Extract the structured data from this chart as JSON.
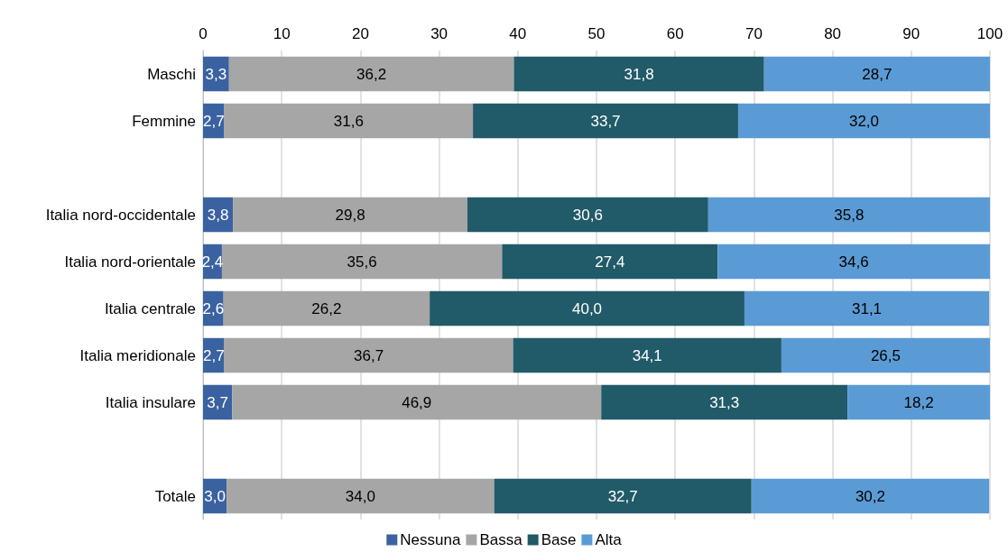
{
  "chart_data": {
    "type": "bar",
    "orientation": "horizontal",
    "stacked": true,
    "categories": [
      "Maschi",
      "Femmine",
      null,
      "Italia nord-occidentale",
      "Italia nord-orientale",
      "Italia centrale",
      "Italia meridionale",
      "Italia insulare",
      null,
      "Totale"
    ],
    "series": [
      {
        "name": "Nessuna",
        "color": "#3a62a0",
        "values": [
          3.3,
          2.7,
          null,
          3.8,
          2.4,
          2.6,
          2.7,
          3.7,
          null,
          3.0
        ],
        "value_labels": [
          "3,3",
          "2,7",
          null,
          "3,8",
          "2,4",
          "2,6",
          "2,7",
          "3,7",
          null,
          "3,0"
        ]
      },
      {
        "name": "Bassa",
        "color": "#a6a6a6",
        "values": [
          36.2,
          31.6,
          null,
          29.8,
          35.6,
          26.2,
          36.7,
          46.9,
          null,
          34.0
        ],
        "value_labels": [
          "36,2",
          "31,6",
          null,
          "29,8",
          "35,6",
          "26,2",
          "36,7",
          "46,9",
          null,
          "34,0"
        ]
      },
      {
        "name": "Base",
        "color": "#215a68",
        "values": [
          31.8,
          33.7,
          null,
          30.6,
          27.4,
          40.0,
          34.1,
          31.3,
          null,
          32.7
        ],
        "value_labels": [
          "31,8",
          "33,7",
          null,
          "30,6",
          "27,4",
          "40,0",
          "34,1",
          "31,3",
          null,
          "32,7"
        ]
      },
      {
        "name": "Alta",
        "color": "#5b9bd5",
        "values": [
          28.7,
          32.0,
          null,
          35.8,
          34.6,
          31.1,
          26.5,
          18.2,
          null,
          30.2
        ],
        "value_labels": [
          "28,7",
          "32,0",
          null,
          "35,8",
          "34,6",
          "31,1",
          "26,5",
          "18,2",
          null,
          "30,2"
        ]
      }
    ],
    "xlim": [
      0,
      100
    ],
    "xticks": [
      0,
      10,
      20,
      30,
      40,
      50,
      60,
      70,
      80,
      90,
      100
    ],
    "grid": "x",
    "legend": "bottom"
  }
}
